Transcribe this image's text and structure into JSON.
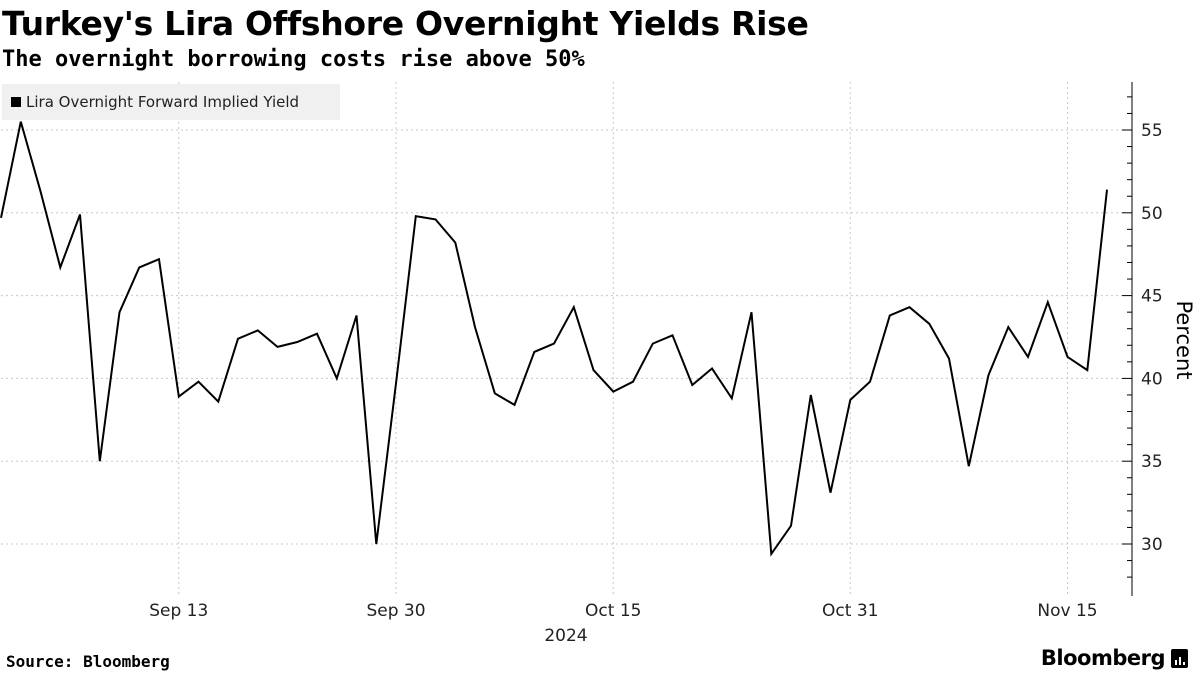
{
  "chart_data": {
    "type": "line",
    "title": "Turkey's Lira Offshore Overnight Yields Rise",
    "subtitle": "The overnight borrowing costs rise above 50%",
    "ylabel": "Percent",
    "xlabel": "2024",
    "ylim": [
      27,
      58
    ],
    "y_ticks": [
      30,
      35,
      40,
      45,
      50,
      55
    ],
    "x_ticks": [
      {
        "label": "Sep 13",
        "index": 9
      },
      {
        "label": "Sep 30",
        "index": 20
      },
      {
        "label": "Oct 15",
        "index": 31
      },
      {
        "label": "Oct 31",
        "index": 43
      },
      {
        "label": "Nov 15",
        "index": 54
      }
    ],
    "year_label": "2024",
    "legend": [
      "Lira Overnight Forward Implied Yield"
    ],
    "grid": true,
    "series": [
      {
        "name": "Lira Overnight Forward Implied Yield",
        "color": "#000000",
        "values": [
          49.7,
          55.5,
          51.3,
          46.7,
          49.9,
          35.0,
          44.0,
          46.7,
          47.2,
          38.9,
          39.8,
          38.6,
          42.4,
          42.9,
          41.9,
          42.2,
          42.7,
          40.0,
          43.8,
          30.0,
          39.7,
          49.8,
          49.6,
          48.2,
          43.1,
          39.1,
          38.4,
          41.6,
          42.1,
          44.3,
          40.5,
          39.2,
          39.8,
          42.1,
          42.6,
          39.6,
          40.6,
          38.8,
          44.0,
          29.4,
          31.1,
          39.0,
          33.1,
          38.7,
          39.8,
          43.8,
          44.3,
          43.3,
          41.2,
          34.7,
          40.2,
          43.1,
          41.3,
          44.6,
          41.3,
          40.5,
          51.4
        ]
      }
    ]
  },
  "footer": {
    "source": "Source: Bloomberg",
    "brand": "Bloomberg"
  }
}
